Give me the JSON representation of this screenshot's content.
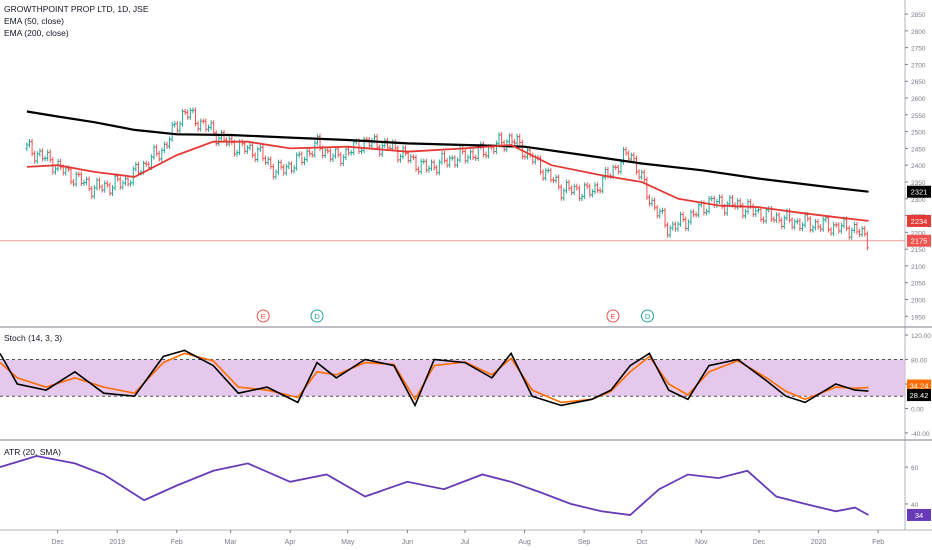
{
  "chart_data": [
    {
      "type": "line",
      "panel": "price",
      "title": "GROWTHPOINT PROP LTD, 1D, JSE",
      "legend": [
        "EMA (50, close)",
        "EMA (200, close)"
      ],
      "legend_position": "top-left",
      "ylim": [
        1930,
        2880
      ],
      "yticks": [
        1950,
        2000,
        2050,
        2100,
        2150,
        2200,
        2250,
        2300,
        2350,
        2400,
        2450,
        2500,
        2550,
        2600,
        2650,
        2700,
        2750,
        2800,
        2850
      ],
      "price_labels": [
        {
          "text": "2321",
          "value": 2321,
          "color": "#000000"
        },
        {
          "text": "2234",
          "value": 2234,
          "color": "#e53935"
        },
        {
          "text": "2175",
          "value": 2175,
          "color": "#ef5350"
        }
      ],
      "last_price": 2175,
      "event_markers": [
        {
          "letter": "E",
          "date": "2019-03-18",
          "color": "#ef5350"
        },
        {
          "letter": "D",
          "date": "2019-04-15",
          "color": "#26a69a"
        },
        {
          "letter": "E",
          "date": "2019-09-16",
          "color": "#ef5350"
        },
        {
          "letter": "D",
          "date": "2019-10-04",
          "color": "#26a69a"
        }
      ],
      "series": [
        {
          "name": "EMA (200, close)",
          "color": "#000000",
          "x": [
            "2018-11-15",
            "2018-12-01",
            "2018-12-20",
            "2019-01-10",
            "2019-02-01",
            "2019-03-01",
            "2019-04-01",
            "2019-05-01",
            "2019-06-01",
            "2019-07-01",
            "2019-08-01",
            "2019-09-01",
            "2019-10-01",
            "2019-11-01",
            "2019-12-01",
            "2020-01-10",
            "2020-01-27"
          ],
          "y": [
            2560,
            2545,
            2528,
            2505,
            2492,
            2490,
            2482,
            2475,
            2465,
            2460,
            2455,
            2430,
            2405,
            2385,
            2360,
            2332,
            2321
          ]
        },
        {
          "name": "EMA (50, close)",
          "color": "#e53935",
          "x": [
            "2018-11-15",
            "2018-12-01",
            "2018-12-20",
            "2019-01-10",
            "2019-02-01",
            "2019-02-20",
            "2019-03-10",
            "2019-04-01",
            "2019-05-01",
            "2019-06-01",
            "2019-07-01",
            "2019-07-25",
            "2019-08-15",
            "2019-09-10",
            "2019-10-01",
            "2019-10-20",
            "2019-11-10",
            "2019-12-01",
            "2019-12-20",
            "2020-01-10",
            "2020-01-27"
          ],
          "y": [
            2395,
            2400,
            2380,
            2365,
            2430,
            2470,
            2470,
            2450,
            2455,
            2440,
            2450,
            2460,
            2400,
            2370,
            2350,
            2300,
            2280,
            2275,
            2260,
            2245,
            2234
          ]
        },
        {
          "name": "Close",
          "color": "#26a69a",
          "x": [
            "2018-11-15",
            "2018-11-25",
            "2018-12-05",
            "2018-12-20",
            "2019-01-05",
            "2019-01-15",
            "2019-01-25",
            "2019-02-05",
            "2019-02-15",
            "2019-03-01",
            "2019-03-15",
            "2019-03-25",
            "2019-04-05",
            "2019-04-15",
            "2019-04-25",
            "2019-05-10",
            "2019-05-25",
            "2019-06-10",
            "2019-06-25",
            "2019-07-10",
            "2019-07-25",
            "2019-08-05",
            "2019-08-20",
            "2019-09-05",
            "2019-09-15",
            "2019-09-25",
            "2019-10-05",
            "2019-10-15",
            "2019-10-25",
            "2019-11-05",
            "2019-11-20",
            "2019-12-05",
            "2019-12-20",
            "2020-01-05",
            "2020-01-20",
            "2020-01-27"
          ],
          "y": [
            2450,
            2420,
            2380,
            2330,
            2350,
            2400,
            2450,
            2560,
            2520,
            2460,
            2440,
            2380,
            2410,
            2460,
            2420,
            2470,
            2450,
            2390,
            2420,
            2440,
            2480,
            2420,
            2330,
            2320,
            2380,
            2440,
            2300,
            2210,
            2240,
            2290,
            2280,
            2250,
            2230,
            2220,
            2210,
            2175
          ]
        }
      ],
      "x_ticks": [
        {
          "label": "Dec",
          "date": "2018-12-01"
        },
        {
          "label": "2019",
          "date": "2019-01-01"
        },
        {
          "label": "Feb",
          "date": "2019-02-01"
        },
        {
          "label": "Mar",
          "date": "2019-03-01"
        },
        {
          "label": "Apr",
          "date": "2019-04-01"
        },
        {
          "label": "May",
          "date": "2019-05-01"
        },
        {
          "label": "Jun",
          "date": "2019-06-01"
        },
        {
          "label": "Jul",
          "date": "2019-07-01"
        },
        {
          "label": "Aug",
          "date": "2019-08-01"
        },
        {
          "label": "Sep",
          "date": "2019-09-01"
        },
        {
          "label": "Oct",
          "date": "2019-10-01"
        },
        {
          "label": "Nov",
          "date": "2019-11-01"
        },
        {
          "label": "Dec",
          "date": "2019-12-01"
        },
        {
          "label": "2020",
          "date": "2020-01-01"
        },
        {
          "label": "Feb",
          "date": "2020-02-01"
        }
      ],
      "x_range": [
        "2018-11-01",
        "2020-02-15"
      ]
    },
    {
      "type": "line",
      "panel": "stoch",
      "title": "Stoch (14, 3, 3)",
      "ylim": [
        -45,
        125
      ],
      "yticks": [
        {
          "value": -40,
          "text": "-40.00"
        },
        {
          "value": 0,
          "text": "0.00"
        },
        {
          "value": 40,
          "text": "40.00"
        },
        {
          "value": 80,
          "text": "80.00"
        },
        {
          "value": 120,
          "text": "120.00"
        }
      ],
      "band": [
        20,
        80
      ],
      "band_color": "#e1bee7",
      "value_labels": [
        {
          "text": "34.24",
          "value": 34.24,
          "color": "#ff6d00"
        },
        {
          "text": "28.42",
          "value": 28.42,
          "color": "#000000"
        }
      ],
      "series": [
        {
          "name": "%K",
          "color": "#000000",
          "x": [
            "2018-11-01",
            "2018-11-10",
            "2018-11-25",
            "2018-12-10",
            "2018-12-25",
            "2019-01-10",
            "2019-01-25",
            "2019-02-05",
            "2019-02-20",
            "2019-03-05",
            "2019-03-20",
            "2019-04-05",
            "2019-04-15",
            "2019-04-25",
            "2019-05-10",
            "2019-05-25",
            "2019-06-05",
            "2019-06-15",
            "2019-07-01",
            "2019-07-15",
            "2019-07-25",
            "2019-08-05",
            "2019-08-20",
            "2019-09-05",
            "2019-09-15",
            "2019-09-25",
            "2019-10-05",
            "2019-10-15",
            "2019-10-25",
            "2019-11-05",
            "2019-11-20",
            "2019-12-05",
            "2019-12-15",
            "2019-12-25",
            "2020-01-10",
            "2020-01-20",
            "2020-01-27"
          ],
          "y": [
            90,
            40,
            30,
            60,
            25,
            20,
            85,
            95,
            70,
            25,
            35,
            10,
            75,
            50,
            80,
            70,
            5,
            80,
            75,
            50,
            90,
            20,
            5,
            15,
            30,
            70,
            90,
            30,
            15,
            70,
            80,
            45,
            20,
            10,
            40,
            30,
            28.42
          ]
        },
        {
          "name": "%D",
          "color": "#ff6d00",
          "x": [
            "2018-11-01",
            "2018-11-10",
            "2018-11-25",
            "2018-12-10",
            "2018-12-25",
            "2019-01-10",
            "2019-01-25",
            "2019-02-05",
            "2019-02-20",
            "2019-03-05",
            "2019-03-20",
            "2019-04-05",
            "2019-04-15",
            "2019-04-25",
            "2019-05-10",
            "2019-05-25",
            "2019-06-05",
            "2019-06-15",
            "2019-07-01",
            "2019-07-15",
            "2019-07-25",
            "2019-08-05",
            "2019-08-20",
            "2019-09-05",
            "2019-09-15",
            "2019-09-25",
            "2019-10-05",
            "2019-10-15",
            "2019-10-25",
            "2019-11-05",
            "2019-11-20",
            "2019-12-05",
            "2019-12-15",
            "2019-12-25",
            "2020-01-10",
            "2020-01-20",
            "2020-01-27"
          ],
          "y": [
            75,
            50,
            35,
            50,
            35,
            25,
            75,
            90,
            78,
            35,
            30,
            18,
            60,
            55,
            75,
            72,
            15,
            70,
            76,
            55,
            82,
            30,
            10,
            15,
            28,
            60,
            85,
            40,
            22,
            60,
            78,
            50,
            28,
            15,
            35,
            33,
            34.24
          ]
        }
      ]
    },
    {
      "type": "line",
      "panel": "atr",
      "title": "ATR (20, SMA)",
      "ylim": [
        28,
        72
      ],
      "yticks": [
        40,
        60
      ],
      "value_labels": [
        {
          "text": "34",
          "value": 34,
          "color": "#673ab7"
        }
      ],
      "series": [
        {
          "name": "ATR",
          "color": "#673ab7",
          "x": [
            "2018-11-01",
            "2018-11-20",
            "2018-12-10",
            "2018-12-25",
            "2019-01-15",
            "2019-02-01",
            "2019-02-20",
            "2019-03-10",
            "2019-04-01",
            "2019-04-20",
            "2019-05-10",
            "2019-06-01",
            "2019-06-20",
            "2019-07-10",
            "2019-07-25",
            "2019-08-10",
            "2019-08-25",
            "2019-09-10",
            "2019-09-25",
            "2019-10-10",
            "2019-10-25",
            "2019-11-10",
            "2019-11-25",
            "2019-12-10",
            "2019-12-25",
            "2020-01-10",
            "2020-01-20",
            "2020-01-27"
          ],
          "y": [
            60,
            66,
            62,
            56,
            42,
            50,
            58,
            62,
            52,
            56,
            44,
            52,
            48,
            56,
            52,
            46,
            40,
            36,
            34,
            48,
            56,
            54,
            58,
            44,
            40,
            36,
            38,
            34
          ]
        }
      ]
    }
  ]
}
